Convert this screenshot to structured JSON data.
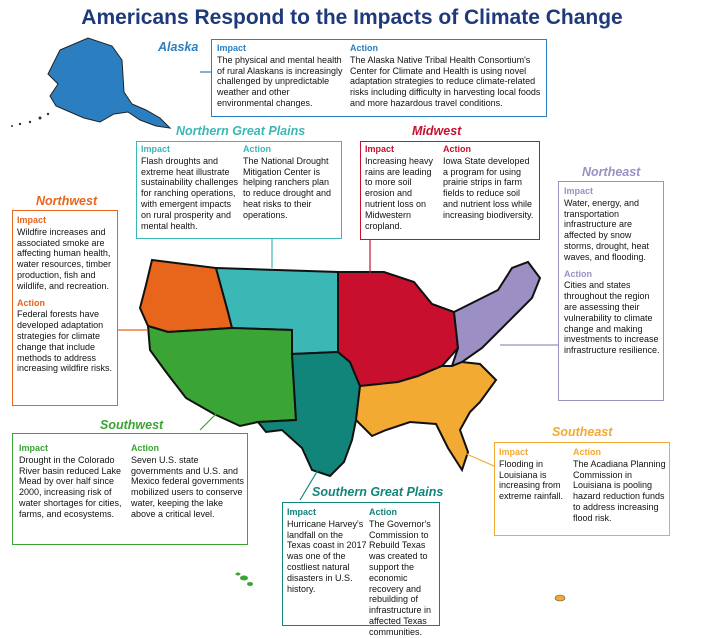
{
  "title": "Americans Respond to the Impacts of Climate Change",
  "colors": {
    "title": "#1f3a7a",
    "alaska": "#2b7fc0",
    "northern_great_plains": "#3bb7b5",
    "midwest": "#c8102e",
    "northeast": "#9b8fc4",
    "northwest": "#e8651c",
    "southwest": "#3aa535",
    "southern_great_plains": "#12857a",
    "southeast": "#f2aa33"
  },
  "regions": {
    "alaska": {
      "name": "Alaska",
      "impact_label": "Impact",
      "impact": "The physical and mental health of rural Alaskans is increasingly challenged by unpredictable weather and other environmental changes.",
      "action_label": "Action",
      "action": "The Alaska Native Tribal Health Consortium's Center for Climate and Health is using novel adaptation strategies to reduce climate-related risks including difficulty in harvesting local foods and more hazardous travel conditions."
    },
    "northern_great_plains": {
      "name": "Northern Great Plains",
      "impact_label": "Impact",
      "impact": "Flash droughts and extreme heat illustrate sustainability challenges for ranching operations, with emergent impacts on rural prosperity and mental health.",
      "action_label": "Action",
      "action": "The National Drought Mitigation Center is helping ranchers plan to reduce drought and heat risks to their operations."
    },
    "midwest": {
      "name": "Midwest",
      "impact_label": "Impact",
      "impact": "Increasing heavy rains are leading to more soil erosion and nutrient loss on Midwestern cropland.",
      "action_label": "Action",
      "action": "Iowa State developed a program for using prairie strips in farm fields to reduce soil and nutrient loss while increasing biodiversity."
    },
    "northeast": {
      "name": "Northeast",
      "impact_label": "Impact",
      "impact": "Water, energy, and transportation infrastructure are affected by snow storms, drought, heat waves, and flooding.",
      "action_label": "Action",
      "action": "Cities and states throughout the region are assessing their vulnerability to climate change and making investments to increase infrastructure resilience."
    },
    "northwest": {
      "name": "Northwest",
      "impact_label": "Impact",
      "impact": "Wildfire increases and associated smoke are affecting human health, water resources, timber production, fish and wildlife, and recreation.",
      "action_label": "Action",
      "action": "Federal forests have developed adaptation strategies for climate change that include methods to address increasing wildfire risks."
    },
    "southwest": {
      "name": "Southwest",
      "impact_label": "Impact",
      "impact": "Drought in the Colorado River basin reduced Lake Mead by over half since 2000, increasing risk of water shortages for cities, farms, and ecosystems.",
      "action_label": "Action",
      "action": "Seven U.S. state governments and U.S. and Mexico federal governments mobilized users to conserve water, keeping the lake above a critical level."
    },
    "southern_great_plains": {
      "name": "Southern Great Plains",
      "impact_label": "Impact",
      "impact": "Hurricane Harvey's landfall on the Texas coast in 2017 was one of the costliest natural disasters in U.S. history.",
      "action_label": "Action",
      "action": "The Governor's Commission to Rebuild Texas was created to support the economic recovery and rebuilding of infrastructure in affected Texas communities."
    },
    "southeast": {
      "name": "Southeast",
      "impact_label": "Impact",
      "impact": "Flooding in Louisiana is increasing from extreme rainfall.",
      "action_label": "Action",
      "action": "The Acadiana Planning Commission in Louisiana is pooling hazard reduction funds to address increasing flood risk."
    }
  }
}
